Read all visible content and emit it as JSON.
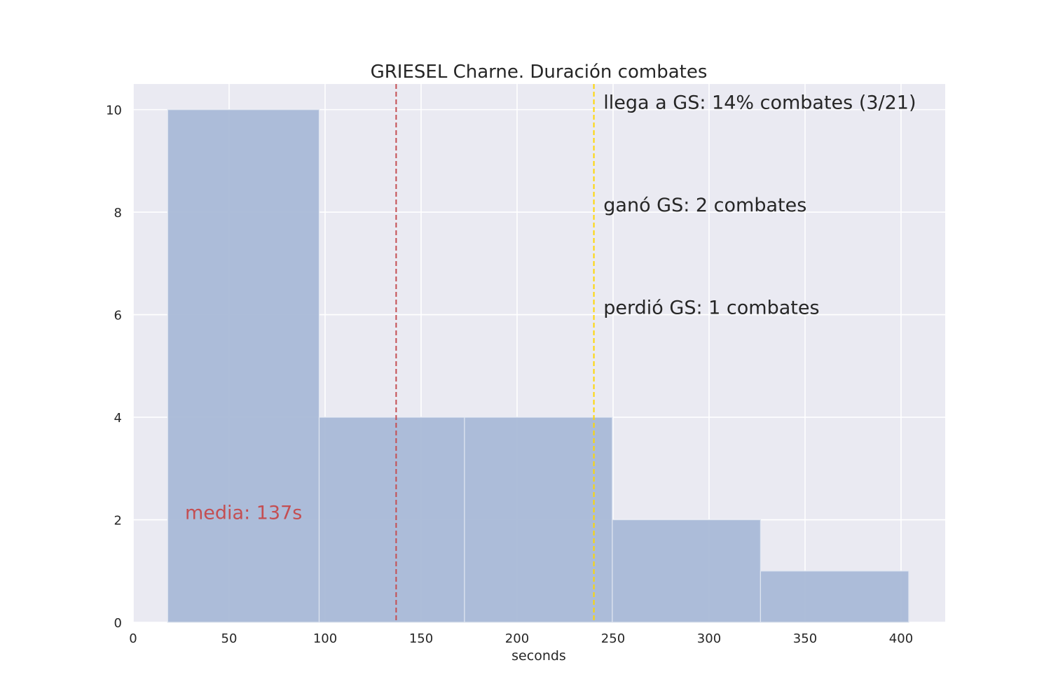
{
  "chart_data": {
    "type": "bar",
    "title": "GRIESEL Charne. Duración combates",
    "xlabel": "seconds",
    "ylabel": "",
    "xlim": [
      0,
      423
    ],
    "ylim": [
      0,
      10.5
    ],
    "xticks": [
      0,
      50,
      100,
      150,
      200,
      250,
      300,
      350,
      400
    ],
    "yticks": [
      0,
      2,
      4,
      6,
      8,
      10
    ],
    "grid": true,
    "bins": [
      {
        "start": 18,
        "end": 96.9,
        "count": 10
      },
      {
        "start": 96.9,
        "end": 172.6,
        "count": 4
      },
      {
        "start": 172.6,
        "end": 249.6,
        "count": 4
      },
      {
        "start": 249.6,
        "end": 326.8,
        "count": 2
      },
      {
        "start": 326.8,
        "end": 404,
        "count": 1
      }
    ],
    "vlines": [
      {
        "x": 137,
        "color": "#c44e52",
        "style": "dashed"
      },
      {
        "x": 240,
        "color": "#ffd700",
        "style": "dashed"
      }
    ],
    "annotations": [
      {
        "text": "llega a GS: 14% combates (3/21)",
        "x": 245,
        "y": 10
      },
      {
        "text": "ganó GS: 2 combates",
        "x": 245,
        "y": 8
      },
      {
        "text": "perdió GS: 1 combates",
        "x": 245,
        "y": 6
      },
      {
        "text": "media: 137s",
        "x": 27,
        "y": 2,
        "color": "#c44e52"
      }
    ],
    "colors": {
      "bar": "#a9b9d7",
      "background": "#eaeaf2",
      "grid": "#ffffff"
    }
  }
}
